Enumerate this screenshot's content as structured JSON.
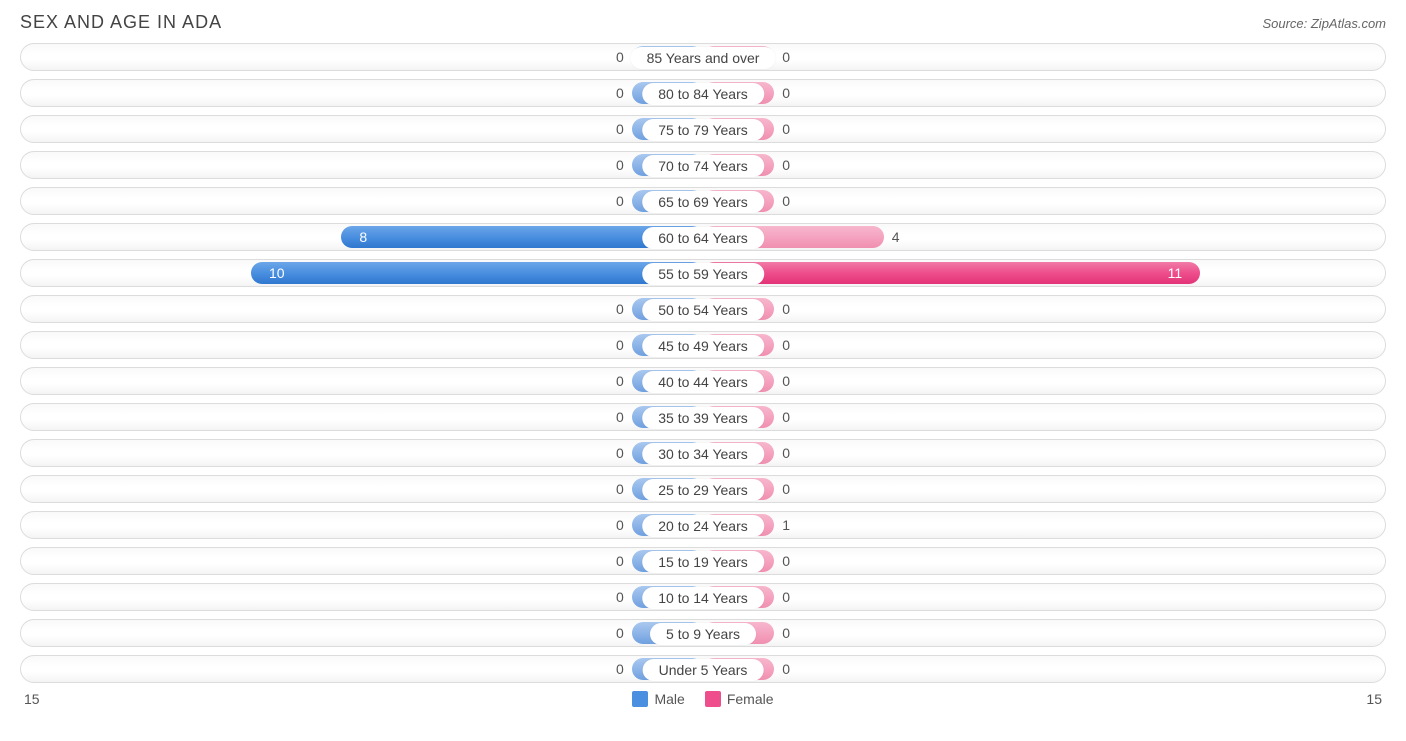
{
  "title": "SEX AND AGE IN ADA",
  "source": "Source: ZipAtlas.com",
  "axis_max": 15,
  "min_bar_percent": 10.5,
  "big_threshold": 5,
  "colors": {
    "male_small": "#8db5e8",
    "male_big": "#4a8fe0",
    "female_small": "#f5a3c0",
    "female_big": "#ee4e8c",
    "track_border": "#dcdcdc",
    "text": "#555"
  },
  "legend": {
    "male": "Male",
    "female": "Female"
  },
  "axis_label_left": "15",
  "axis_label_right": "15",
  "rows": [
    {
      "age": "85 Years and over",
      "male": 0,
      "female": 0
    },
    {
      "age": "80 to 84 Years",
      "male": 0,
      "female": 0
    },
    {
      "age": "75 to 79 Years",
      "male": 0,
      "female": 0
    },
    {
      "age": "70 to 74 Years",
      "male": 0,
      "female": 0
    },
    {
      "age": "65 to 69 Years",
      "male": 0,
      "female": 0
    },
    {
      "age": "60 to 64 Years",
      "male": 8,
      "female": 4
    },
    {
      "age": "55 to 59 Years",
      "male": 10,
      "female": 11
    },
    {
      "age": "50 to 54 Years",
      "male": 0,
      "female": 0
    },
    {
      "age": "45 to 49 Years",
      "male": 0,
      "female": 0
    },
    {
      "age": "40 to 44 Years",
      "male": 0,
      "female": 0
    },
    {
      "age": "35 to 39 Years",
      "male": 0,
      "female": 0
    },
    {
      "age": "30 to 34 Years",
      "male": 0,
      "female": 0
    },
    {
      "age": "25 to 29 Years",
      "male": 0,
      "female": 0
    },
    {
      "age": "20 to 24 Years",
      "male": 0,
      "female": 1
    },
    {
      "age": "15 to 19 Years",
      "male": 0,
      "female": 0
    },
    {
      "age": "10 to 14 Years",
      "male": 0,
      "female": 0
    },
    {
      "age": "5 to 9 Years",
      "male": 0,
      "female": 0
    },
    {
      "age": "Under 5 Years",
      "male": 0,
      "female": 0
    }
  ]
}
